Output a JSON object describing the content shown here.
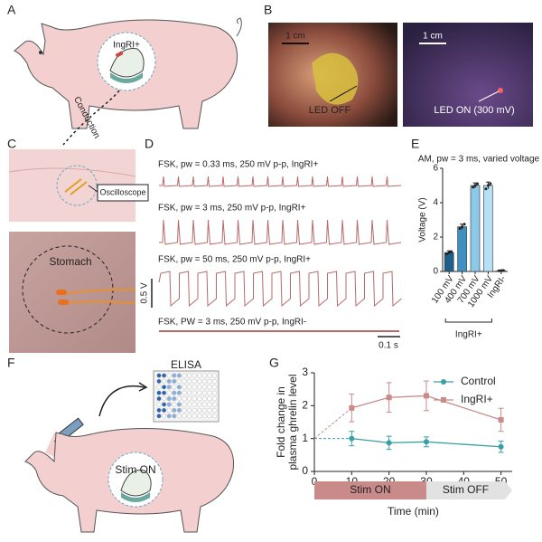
{
  "panel_labels": [
    "A",
    "B",
    "C",
    "D",
    "E",
    "F",
    "G"
  ],
  "panel_a": {
    "implant_label": "IngRI+",
    "conduction": "Conduction"
  },
  "panel_b": {
    "left_scale": "1 cm",
    "left_label": "LED OFF",
    "right_scale": "1 cm",
    "right_label": "LED ON (300 mV)"
  },
  "panel_c": {
    "device": "Oscilloscope",
    "organ": "Stomach"
  },
  "panel_d": {
    "traces": [
      "FSK, pw = 0.33 ms, 250 mV p-p, IngRI+",
      "FSK, pw = 3 ms, 250 mV p-p, IngRI+",
      "FSK, pw = 50 ms, 250 mV p-p, IngRI+",
      "FSK, PW = 3 ms, 250 mV p-p, IngRI-"
    ],
    "v_scale": "0.5 V",
    "t_scale": "0.1 s"
  },
  "panel_f": {
    "assay": "ELISA",
    "state": "Stim ON"
  },
  "chart_data": [
    {
      "type": "bar",
      "title": "AM, pw = 3 ms, varied voltage",
      "y_label": "Voltage (V)",
      "categories": [
        "100 mV",
        "400 mV",
        "700 mV",
        "1000 mV",
        "IngRI-"
      ],
      "values": [
        1.1,
        2.6,
        5.0,
        5.0,
        0.05
      ],
      "errors": [
        0.1,
        0.15,
        0.15,
        0.2,
        0.02
      ],
      "points": [
        [
          1.02,
          1.1,
          1.15
        ],
        [
          2.5,
          2.6,
          2.75
        ],
        [
          4.9,
          5.0,
          5.1
        ],
        [
          4.8,
          5.0,
          5.1
        ],
        [
          0.04,
          0.05,
          0.06
        ]
      ],
      "colors": [
        "#1f5f8b",
        "#3f8fc0",
        "#8cc8e8",
        "#b5e0f5",
        "#dddddd"
      ],
      "group_label": "IngRI+",
      "ylim": [
        0,
        6
      ],
      "yticks": [
        0,
        2,
        4,
        6
      ]
    },
    {
      "type": "line",
      "x_label": "Time (min)",
      "y_label": [
        "Fold change in",
        "plasma ghrelin level"
      ],
      "x": [
        10,
        20,
        30,
        50
      ],
      "series": [
        {
          "name": "Control",
          "color": "#3a9ea5",
          "marker": "circle",
          "values": [
            1.0,
            0.87,
            0.9,
            0.75
          ],
          "errors": [
            0.22,
            0.2,
            0.15,
            0.17
          ]
        },
        {
          "name": "IngRI+",
          "color": "#c98a8a",
          "marker": "square",
          "values": [
            1.93,
            2.25,
            2.3,
            1.57
          ],
          "errors": [
            0.42,
            0.45,
            0.45,
            0.35
          ]
        }
      ],
      "baseline": 1,
      "xlim": [
        0,
        53
      ],
      "ylim": [
        0,
        3
      ],
      "xticks": [
        0,
        10,
        20,
        30,
        40,
        50
      ],
      "yticks": [
        0,
        1,
        2,
        3
      ],
      "phases": [
        {
          "label": "Stim ON",
          "start": 0,
          "end": 30,
          "color": "#c98a8a"
        },
        {
          "label": "Stim OFF",
          "start": 30,
          "end": 53,
          "color": "#e2e2e2"
        }
      ],
      "legend": "upper right"
    }
  ]
}
